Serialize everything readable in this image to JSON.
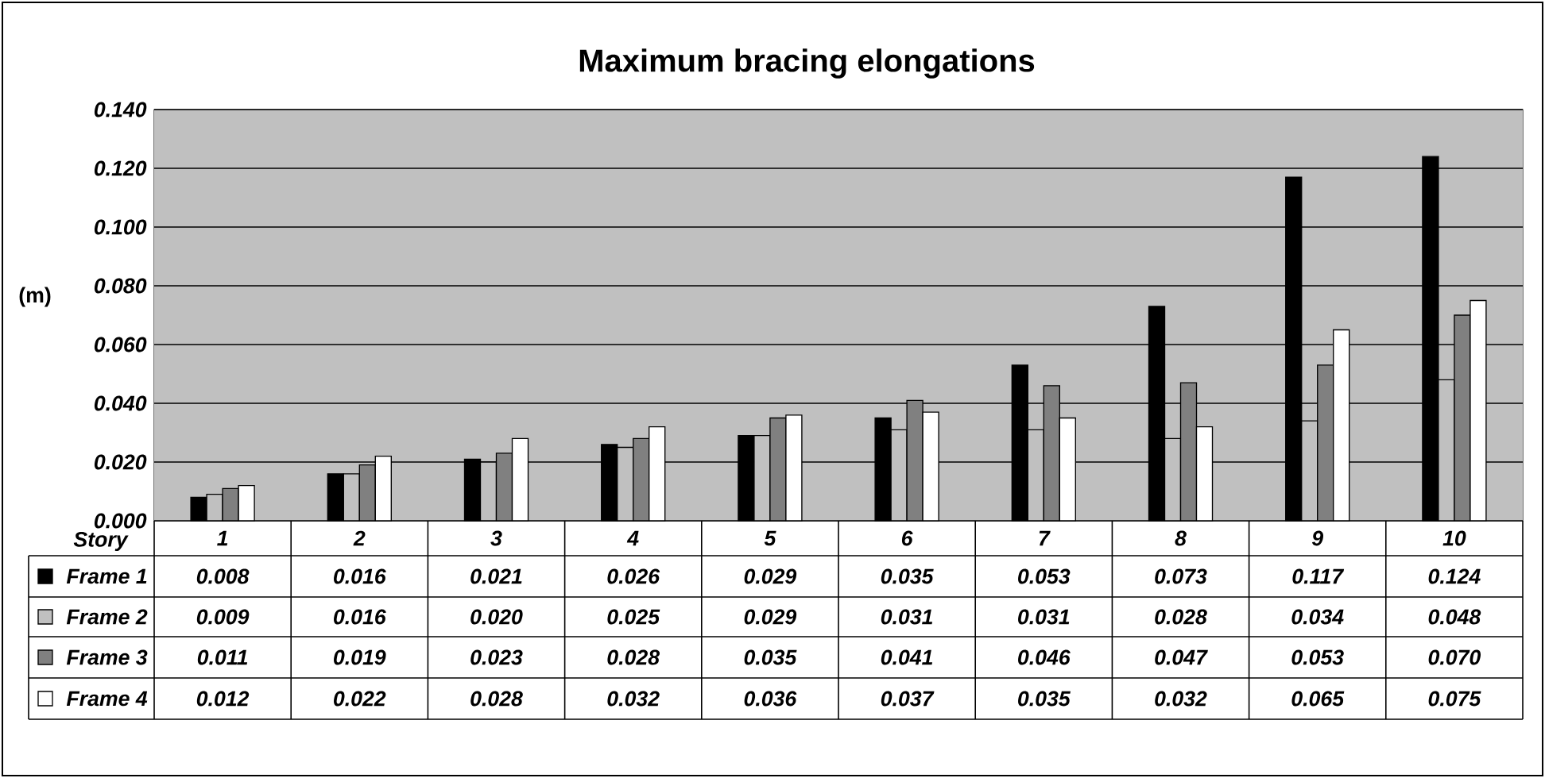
{
  "chart_data": {
    "type": "bar",
    "title": "Maximum bracing elongations",
    "xlabel": "Story",
    "ylabel": "(m)",
    "categories": [
      "1",
      "2",
      "3",
      "4",
      "5",
      "6",
      "7",
      "8",
      "9",
      "10"
    ],
    "series": [
      {
        "name": "Frame 1",
        "color": "#000000",
        "values": [
          0.008,
          0.016,
          0.021,
          0.026,
          0.029,
          0.035,
          0.053,
          0.073,
          0.117,
          0.124
        ],
        "value_labels": [
          "0.008",
          "0.016",
          "0.021",
          "0.026",
          "0.029",
          "0.035",
          "0.053",
          "0.073",
          "0.117",
          "0.124"
        ]
      },
      {
        "name": "Frame 2",
        "color": "#c0c0c0",
        "values": [
          0.009,
          0.016,
          0.02,
          0.025,
          0.029,
          0.031,
          0.031,
          0.028,
          0.034,
          0.048
        ],
        "value_labels": [
          "0.009",
          "0.016",
          "0.020",
          "0.025",
          "0.029",
          "0.031",
          "0.031",
          "0.028",
          "0.034",
          "0.048"
        ]
      },
      {
        "name": "Frame 3",
        "color": "#808080",
        "values": [
          0.011,
          0.019,
          0.023,
          0.028,
          0.035,
          0.041,
          0.046,
          0.047,
          0.053,
          0.07
        ],
        "value_labels": [
          "0.011",
          "0.019",
          "0.023",
          "0.028",
          "0.035",
          "0.041",
          "0.046",
          "0.047",
          "0.053",
          "0.070"
        ]
      },
      {
        "name": "Frame 4",
        "color": "#ffffff",
        "values": [
          0.012,
          0.022,
          0.028,
          0.032,
          0.036,
          0.037,
          0.035,
          0.032,
          0.065,
          0.075
        ],
        "value_labels": [
          "0.012",
          "0.022",
          "0.028",
          "0.032",
          "0.036",
          "0.037",
          "0.035",
          "0.032",
          "0.065",
          "0.075"
        ]
      }
    ],
    "ylim": [
      0,
      0.14
    ],
    "yticks": [
      {
        "value": 0,
        "label": "0.000"
      },
      {
        "value": 0.02,
        "label": "0.020"
      },
      {
        "value": 0.04,
        "label": "0.040"
      },
      {
        "value": 0.06,
        "label": "0.060"
      },
      {
        "value": 0.08,
        "label": "0.080"
      },
      {
        "value": 0.1,
        "label": "0.100"
      },
      {
        "value": 0.12,
        "label": "0.120"
      },
      {
        "value": 0.14,
        "label": "0.140"
      }
    ],
    "grid": "y",
    "legend": "bottom",
    "data_labels": true
  }
}
